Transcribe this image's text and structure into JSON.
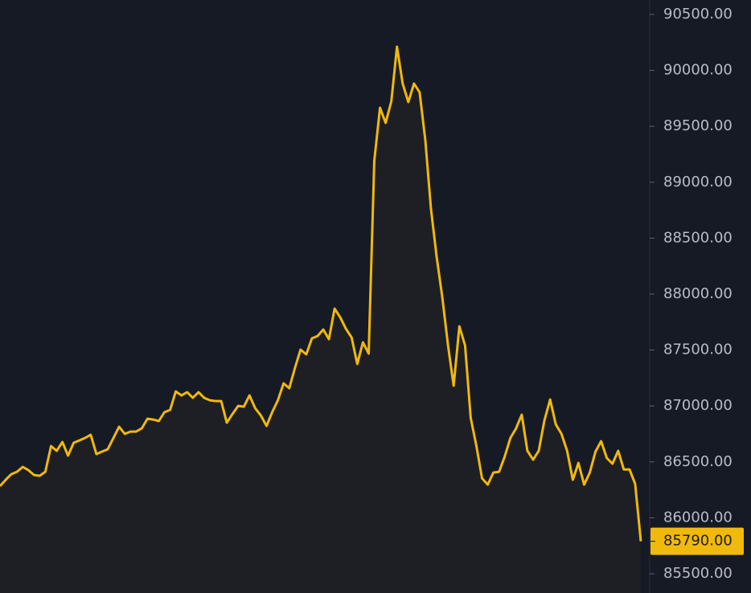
{
  "chart_data": {
    "type": "line",
    "ylim": [
      85328,
      90629
    ],
    "yticks": [
      {
        "value": 90500,
        "label": "90500.00"
      },
      {
        "value": 90000,
        "label": "90000.00"
      },
      {
        "value": 89500,
        "label": "89500.00"
      },
      {
        "value": 89000,
        "label": "89000.00"
      },
      {
        "value": 88500,
        "label": "88500.00"
      },
      {
        "value": 88000,
        "label": "88000.00"
      },
      {
        "value": 87500,
        "label": "87500.00"
      },
      {
        "value": 87000,
        "label": "87000.00"
      },
      {
        "value": 86500,
        "label": "86500.00"
      },
      {
        "value": 86000,
        "label": "86000.00"
      },
      {
        "value": 85500,
        "label": "85500.00"
      }
    ],
    "color": "#f0b90b",
    "last_price": {
      "value": 85790,
      "label": "85790.00"
    },
    "values": [
      86283,
      86340,
      86390,
      86412,
      86455,
      86426,
      86383,
      86376,
      86412,
      86642,
      86599,
      86678,
      86556,
      86671,
      86692,
      86714,
      86742,
      86570,
      86592,
      86613,
      86714,
      86814,
      86750,
      86771,
      86771,
      86800,
      86886,
      86879,
      86865,
      86944,
      86965,
      87130,
      87094,
      87123,
      87073,
      87123,
      87073,
      87051,
      87044,
      87044,
      86850,
      86929,
      87001,
      86994,
      87094,
      86979,
      86915,
      86822,
      86944,
      87051,
      87202,
      87159,
      87339,
      87504,
      87461,
      87604,
      87626,
      87683,
      87597,
      87870,
      87791,
      87690,
      87612,
      87375,
      87569,
      87468,
      89192,
      89666,
      89530,
      89724,
      90212,
      89882,
      89717,
      89882,
      89803,
      89372,
      88761,
      88330,
      87971,
      87540,
      87181,
      87712,
      87540,
      86893,
      86642,
      86354,
      86297,
      86405,
      86412,
      86548,
      86714,
      86800,
      86922,
      86599,
      86520,
      86599,
      86872,
      87058,
      86836,
      86750,
      86599,
      86340,
      86491,
      86297,
      86405,
      86592,
      86685,
      86534,
      86484,
      86599,
      86433,
      86433,
      86304,
      85790
    ]
  }
}
